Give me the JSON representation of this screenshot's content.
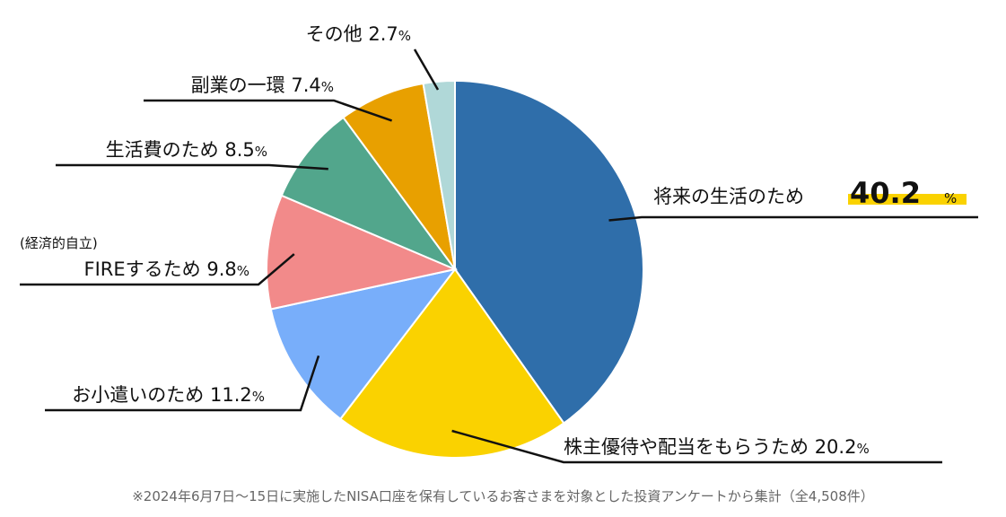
{
  "chart_data": {
    "type": "pie",
    "slices": [
      {
        "label": "将来の生活のため",
        "value": 40.2,
        "value_text": "40.2",
        "color": "#2f6eaa"
      },
      {
        "label": "株主優待や配当をもらうため",
        "value": 20.2,
        "value_text": "20.2",
        "color": "#fad200"
      },
      {
        "label": "お小遣いのため",
        "value": 11.2,
        "value_text": "11.2",
        "color": "#78aefa"
      },
      {
        "label": "FIREするため",
        "sublabel": "(経済的自立)",
        "value": 9.8,
        "value_text": "9.8",
        "color": "#f28a8a"
      },
      {
        "label": "生活費のため",
        "value": 8.5,
        "value_text": "8.5",
        "color": "#52a68c"
      },
      {
        "label": "副業の一環",
        "value": 7.4,
        "value_text": "7.4",
        "color": "#e8a000"
      },
      {
        "label": "その他",
        "value": 2.7,
        "value_text": "2.7",
        "color": "#b0d8d8"
      }
    ],
    "unit": "%",
    "highlight_color": "#fad200",
    "line_color": "#111111"
  },
  "footnote": "※2024年6月7日〜15日に実施したNISA口座を保有しているお客さまを対象とした投資アンケートから集計（全4,508件）"
}
